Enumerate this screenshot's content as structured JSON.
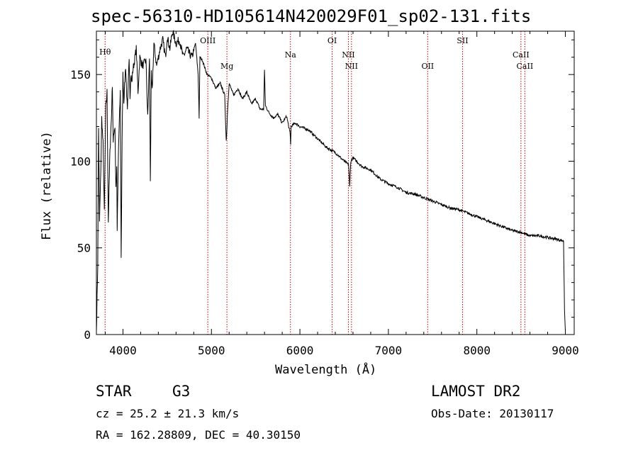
{
  "title": "spec-56310-HD105614N420029F01_sp02-131.fits",
  "info": {
    "object_type": "STAR",
    "subclass": "G3",
    "survey": "LAMOST DR2",
    "cz": "cz = 25.2 ± 21.3 km/s",
    "radec": "RA = 162.28809, DEC =  40.30150",
    "obs_date": "Obs-Date: 20130117"
  },
  "chart_data": {
    "type": "line",
    "title": "spec-56310-HD105614N420029F01_sp02-131.fits",
    "xlabel": "Wavelength (Å)",
    "ylabel": "Flux (relative)",
    "xlim": [
      3700,
      9100
    ],
    "ylim": [
      0,
      175
    ],
    "xticks": [
      4000,
      5000,
      6000,
      7000,
      8000,
      9000
    ],
    "yticks": [
      0,
      50,
      100,
      150
    ],
    "grid": false,
    "series": [
      {
        "x": [
          3700,
          3715,
          3725,
          3735,
          3750,
          3760,
          3775,
          3790,
          3805,
          3820,
          3835,
          3850,
          3860,
          3870,
          3880,
          3890,
          3900,
          3910,
          3920,
          3930,
          3935,
          3950,
          3970,
          3980,
          3990,
          4000,
          4010,
          4030,
          4050,
          4070,
          4080,
          4090,
          4100,
          4110,
          4130,
          4150,
          4170,
          4190,
          4220,
          4260,
          4280,
          4300,
          4310,
          4320,
          4330,
          4350,
          4380,
          4420,
          4450,
          4480,
          4500,
          4530,
          4560,
          4600,
          4640,
          4680,
          4720,
          4750,
          4780,
          4820,
          4850,
          4861,
          4870,
          4900,
          4950,
          5000,
          5050,
          5100,
          5150,
          5167,
          5172,
          5183,
          5200,
          5250,
          5300,
          5350,
          5400,
          5450,
          5500,
          5550,
          5590,
          5600,
          5610,
          5650,
          5700,
          5750,
          5800,
          5850,
          5889,
          5895,
          5900,
          5950,
          6000,
          6100,
          6200,
          6300,
          6400,
          6500,
          6550,
          6563,
          6575,
          6600,
          6700,
          6800,
          6900,
          7000,
          7100,
          7200,
          7300,
          7400,
          7500,
          7600,
          7700,
          7800,
          7900,
          8000,
          8100,
          8200,
          8300,
          8400,
          8498,
          8542,
          8600,
          8662,
          8700,
          8800,
          8900,
          8980,
          8990,
          9000
        ],
        "values": [
          2,
          40,
          120,
          65,
          95,
          125,
          110,
          70,
          130,
          140,
          65,
          100,
          115,
          125,
          145,
          110,
          118,
          120,
          85,
          95,
          60,
          108,
          140,
          45,
          110,
          150,
          135,
          155,
          128,
          160,
          138,
          150,
          145,
          152,
          158,
          165,
          140,
          160,
          155,
          158,
          125,
          160,
          90,
          150,
          140,
          168,
          155,
          165,
          170,
          160,
          172,
          165,
          175,
          168,
          170,
          160,
          165,
          162,
          160,
          168,
          150,
          125,
          160,
          158,
          150,
          148,
          142,
          145,
          138,
          112,
          115,
          130,
          145,
          138,
          142,
          136,
          140,
          133,
          136,
          130,
          130,
          152,
          132,
          128,
          125,
          127,
          122,
          126,
          116,
          110,
          120,
          122,
          120,
          118,
          113,
          108,
          105,
          100,
          98,
          85,
          100,
          102,
          97,
          95,
          90,
          87,
          85,
          82,
          81,
          79,
          77,
          75,
          73,
          72,
          70,
          68,
          66,
          64,
          62,
          60,
          59,
          58,
          57,
          57,
          57,
          56,
          55,
          54,
          15,
          2
        ]
      }
    ],
    "lines": [
      {
        "label": "Hθ",
        "wavelength": 3798
      },
      {
        "label": "OIII",
        "wavelength": 4959
      },
      {
        "label": "Mg",
        "wavelength": 5175
      },
      {
        "label": "Na",
        "wavelength": 5893
      },
      {
        "label": "OI",
        "wavelength": 6364
      },
      {
        "label": "NII",
        "wavelength": 6548
      },
      {
        "label": "NII",
        "wavelength": 6583
      },
      {
        "label": "OII",
        "wavelength": 7444
      },
      {
        "label": "SII",
        "wavelength": 7838
      },
      {
        "label": "CaII",
        "wavelength": 8498
      },
      {
        "label": "CaII",
        "wavelength": 8542
      }
    ],
    "colors": {
      "spectrum": "#000000",
      "line_marker": "#cc0000"
    }
  }
}
